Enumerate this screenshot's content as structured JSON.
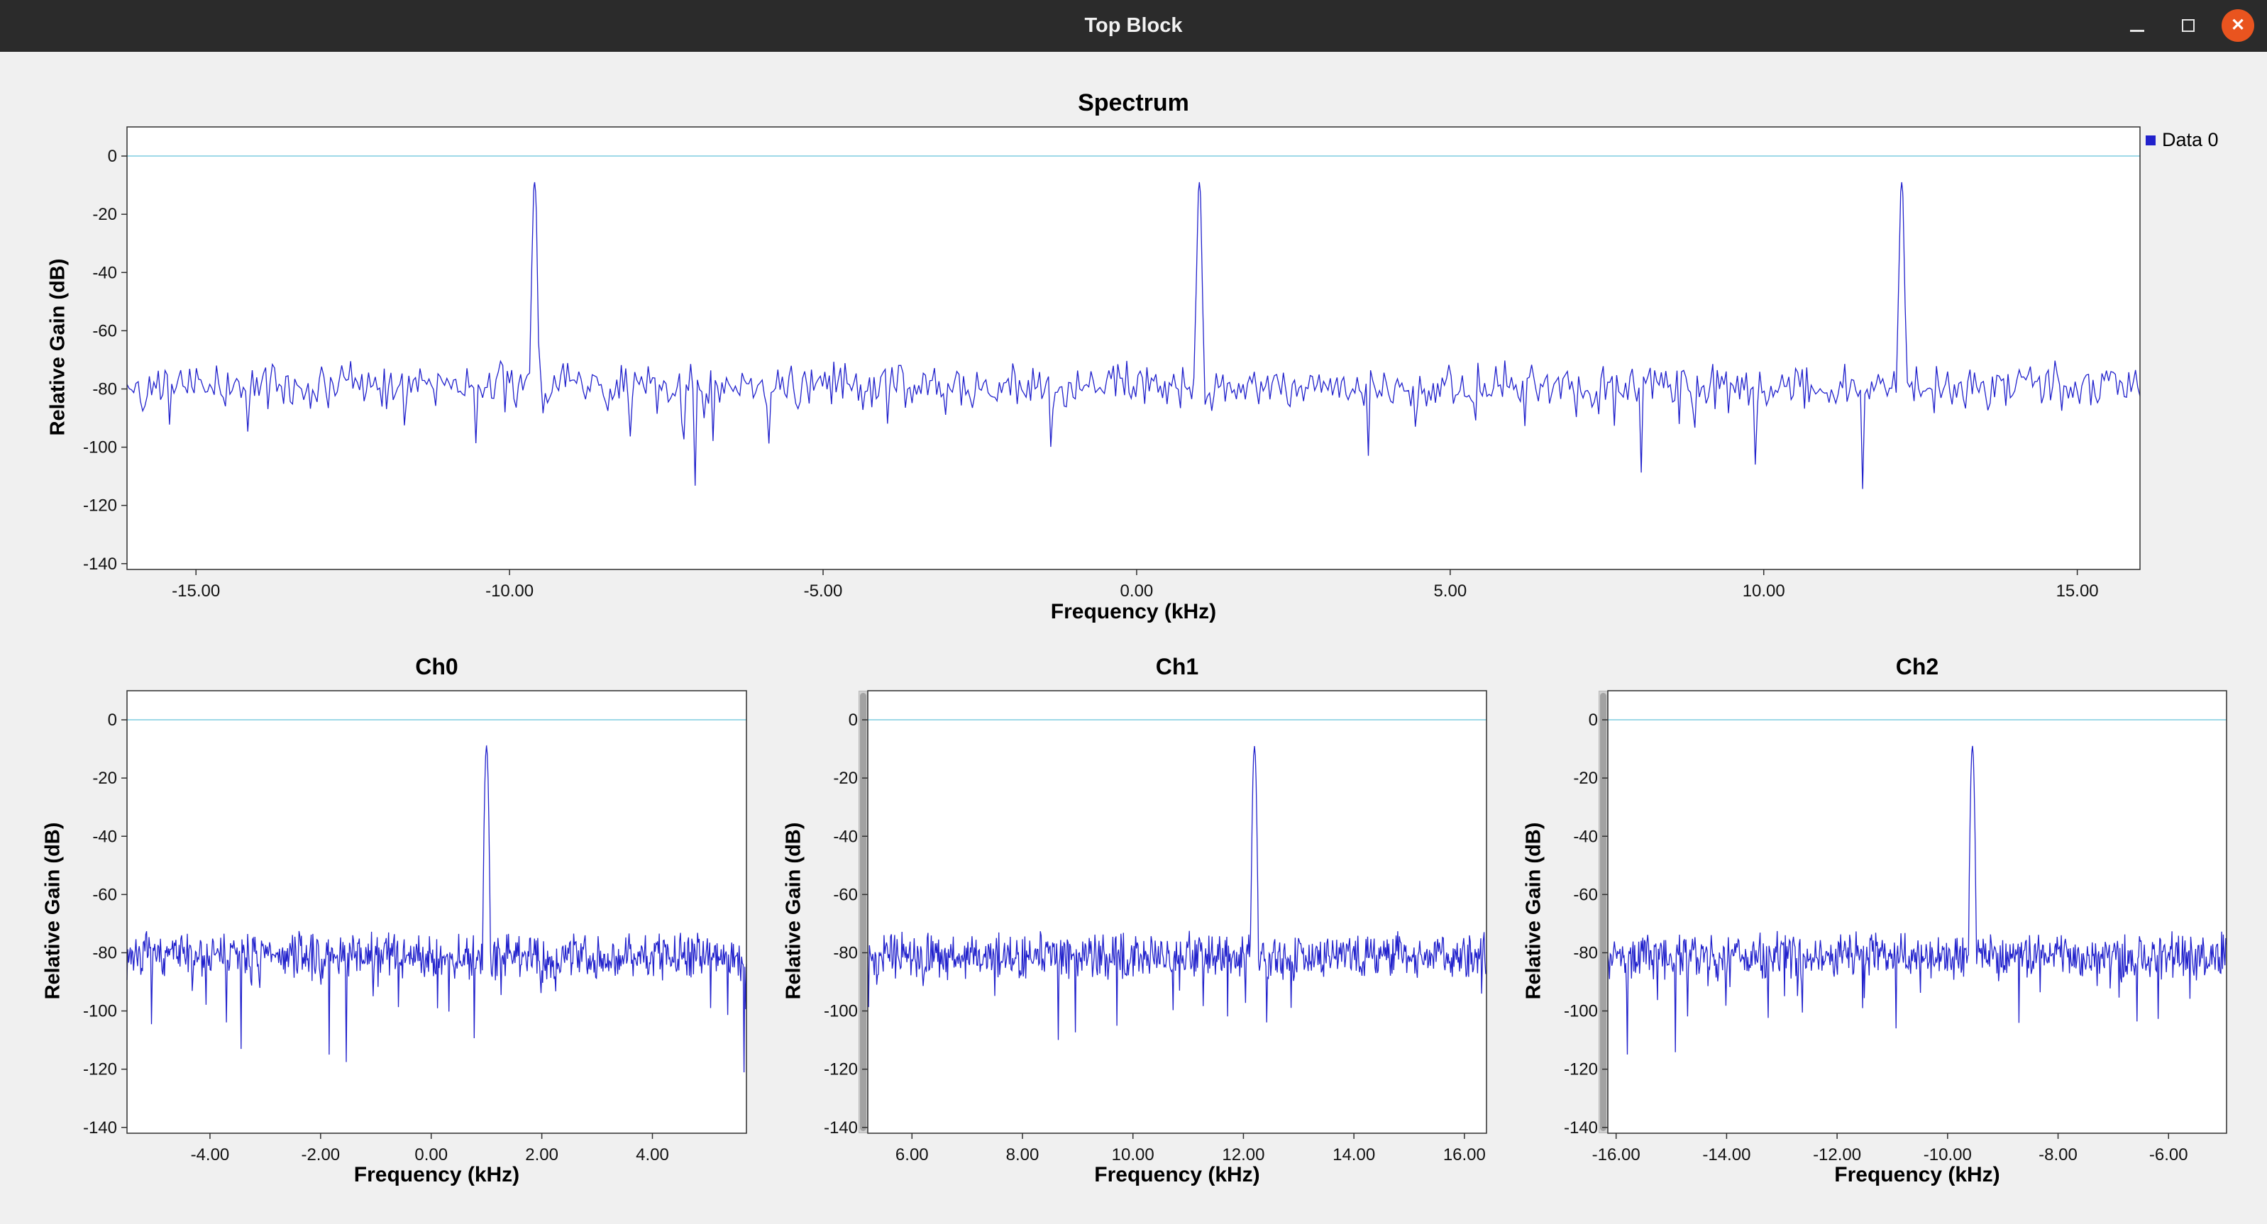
{
  "window": {
    "title": "Top Block",
    "buttons": [
      {
        "name": "minimize"
      },
      {
        "name": "maximize"
      },
      {
        "name": "close",
        "glyph": "✕"
      }
    ]
  },
  "colors": {
    "titlebar_bg": "#2b2b2b",
    "titlebar_text": "#f2f2f2",
    "close_button": "#e9541f",
    "content_bg": "#f0f0f0",
    "plot_bg": "#ffffff",
    "plot_frame": "#2f2f2f",
    "trace": "#2121cc",
    "zero_line": "#9ed9e8",
    "text": "#111111"
  },
  "legend": {
    "items": [
      {
        "label": "Data 0",
        "color": "#2121cc"
      }
    ]
  },
  "chart_data": [
    {
      "id": "spectrum",
      "type": "line",
      "title": "Spectrum",
      "xlabel": "Frequency (kHz)",
      "ylabel": "Relative Gain (dB)",
      "xlim": [
        -16.1,
        16.0
      ],
      "ylim": [
        -142,
        10
      ],
      "xticks": [
        -15,
        -10,
        -5,
        0,
        5,
        10,
        15
      ],
      "xtick_labels": [
        "-15.00",
        "-10.00",
        "-5.00",
        "0.00",
        "5.00",
        "10.00",
        "15.00"
      ],
      "yticks": [
        0,
        -20,
        -40,
        -60,
        -80,
        -100,
        -120,
        -140
      ],
      "noise_floor_db": -79,
      "reference_line_db": 0,
      "peaks": [
        {
          "freq_khz": -9.6,
          "level_db": -9
        },
        {
          "freq_khz": 1.0,
          "level_db": -9
        },
        {
          "freq_khz": 12.2,
          "level_db": -9
        }
      ],
      "legend": [
        "Data 0"
      ],
      "grid": false
    },
    {
      "id": "ch0",
      "type": "line",
      "title": "Ch0",
      "xlabel": "Frequency (kHz)",
      "ylabel": "Relative Gain (dB)",
      "xlim": [
        -5.5,
        5.7
      ],
      "ylim": [
        -142,
        10
      ],
      "xticks": [
        -4,
        -2,
        0,
        2,
        4
      ],
      "xtick_labels": [
        "-4.00",
        "-2.00",
        "0.00",
        "2.00",
        "4.00"
      ],
      "yticks": [
        0,
        -20,
        -40,
        -60,
        -80,
        -100,
        -120,
        -140
      ],
      "noise_floor_db": -81,
      "reference_line_db": 0,
      "peaks": [
        {
          "freq_khz": 1.0,
          "level_db": -9
        }
      ],
      "legend": [],
      "grid": false
    },
    {
      "id": "ch1",
      "type": "line",
      "title": "Ch1",
      "xlabel": "Frequency (kHz)",
      "ylabel": "Relative Gain (dB)",
      "xlim": [
        5.2,
        16.4
      ],
      "ylim": [
        -142,
        10
      ],
      "xticks": [
        6,
        8,
        10,
        12,
        14,
        16
      ],
      "xtick_labels": [
        "6.00",
        "8.00",
        "10.00",
        "12.00",
        "14.00",
        "16.00"
      ],
      "yticks": [
        0,
        -20,
        -40,
        -60,
        -80,
        -100,
        -120,
        -140
      ],
      "noise_floor_db": -81,
      "reference_line_db": 0,
      "peaks": [
        {
          "freq_khz": 12.2,
          "level_db": -9
        }
      ],
      "legend": [],
      "grid": false
    },
    {
      "id": "ch2",
      "type": "line",
      "title": "Ch2",
      "xlabel": "Frequency (kHz)",
      "ylabel": "Relative Gain (dB)",
      "xlim": [
        -16.15,
        -4.95
      ],
      "ylim": [
        -142,
        10
      ],
      "xticks": [
        -16,
        -14,
        -12,
        -10,
        -8,
        -6
      ],
      "xtick_labels": [
        "-16.00",
        "-14.00",
        "-12.00",
        "-10.00",
        "-8.00",
        "-6.00"
      ],
      "yticks": [
        0,
        -20,
        -40,
        -60,
        -80,
        -100,
        -120,
        -140
      ],
      "noise_floor_db": -81,
      "reference_line_db": 0,
      "peaks": [
        {
          "freq_khz": -9.55,
          "level_db": -9
        }
      ],
      "legend": [],
      "grid": false
    }
  ]
}
